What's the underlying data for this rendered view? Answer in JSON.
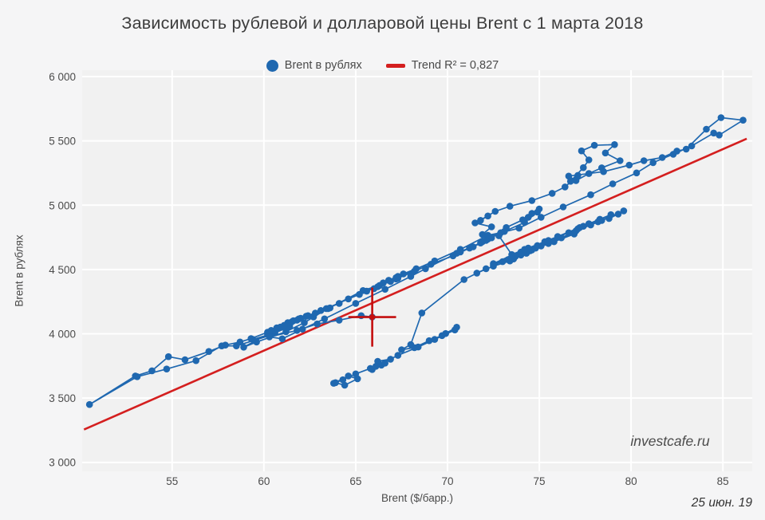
{
  "title": "Зависимость рублевой и долларовой цены Brent с 1 марта 2018",
  "watermark": "investcafe.ru",
  "date_label": "25 июн. 19",
  "legend": {
    "series_label": "Brent в рублях",
    "trend_label": "Trend R² = 0,827"
  },
  "colors": {
    "series": "#1f68b0",
    "trend": "#d41f1f",
    "marker_cross": "#c40f0f",
    "plot_bg": "#f1f1f1",
    "grid": "#ffffff",
    "tick_text": "#4c4c4c"
  },
  "chart_data": {
    "type": "scatter",
    "title": "Зависимость рублевой и долларовой цены Brent с 1 марта 2018",
    "xlabel": "Brent ($/барр.)",
    "ylabel": "Brent в рублях",
    "xlim": [
      50.1,
      86.6
    ],
    "ylim": [
      2930,
      6050
    ],
    "xticks": [
      55,
      60,
      65,
      70,
      75,
      80,
      85
    ],
    "yticks": [
      3000,
      3500,
      4000,
      4500,
      5000,
      5500,
      6000
    ],
    "ytick_labels": [
      "3 000",
      "3 500",
      "4 000",
      "4 500",
      "5 000",
      "5 500",
      "6 000"
    ],
    "grid": true,
    "legend_position": "top",
    "series": [
      {
        "name": "Brent в рублях",
        "mode": "lines+markers",
        "points": [
          [
            63.9,
            3620
          ],
          [
            64.4,
            3600
          ],
          [
            65.1,
            3650
          ],
          [
            64.6,
            3672
          ],
          [
            63.8,
            3615
          ],
          [
            64.3,
            3642
          ],
          [
            65.0,
            3688
          ],
          [
            65.8,
            3731
          ],
          [
            66.4,
            3756
          ],
          [
            65.9,
            3722
          ],
          [
            66.6,
            3772
          ],
          [
            66.2,
            3786
          ],
          [
            66.9,
            3802
          ],
          [
            66.1,
            3747
          ],
          [
            67.3,
            3832
          ],
          [
            68.4,
            3897
          ],
          [
            69.3,
            3956
          ],
          [
            70.4,
            4030
          ],
          [
            69.9,
            4002
          ],
          [
            70.5,
            4051
          ],
          [
            69.7,
            3986
          ],
          [
            69.0,
            3946
          ],
          [
            68.2,
            3892
          ],
          [
            67.5,
            3876
          ],
          [
            68.0,
            3916
          ],
          [
            68.6,
            4162
          ],
          [
            70.9,
            4422
          ],
          [
            72.1,
            4506
          ],
          [
            71.6,
            4472
          ],
          [
            72.5,
            4526
          ],
          [
            73.4,
            4566
          ],
          [
            74.0,
            4612
          ],
          [
            73.6,
            4582
          ],
          [
            74.5,
            4646
          ],
          [
            75.1,
            4682
          ],
          [
            74.3,
            4626
          ],
          [
            74.8,
            4666
          ],
          [
            75.5,
            4702
          ],
          [
            76.2,
            4746
          ],
          [
            77.0,
            4801
          ],
          [
            77.8,
            4846
          ],
          [
            78.4,
            4881
          ],
          [
            79.3,
            4931
          ],
          [
            78.8,
            4896
          ],
          [
            79.6,
            4956
          ],
          [
            78.2,
            4871
          ],
          [
            77.4,
            4836
          ],
          [
            76.6,
            4786
          ],
          [
            75.5,
            4726
          ],
          [
            76.9,
            4776
          ],
          [
            75.8,
            4716
          ],
          [
            74.6,
            4651
          ],
          [
            73.7,
            4601
          ],
          [
            74.9,
            4686
          ],
          [
            73.3,
            4576
          ],
          [
            72.5,
            4536
          ],
          [
            74.0,
            4636
          ],
          [
            75.3,
            4716
          ],
          [
            76.0,
            4756
          ],
          [
            77.2,
            4826
          ],
          [
            78.3,
            4891
          ],
          [
            77.7,
            4856
          ],
          [
            78.9,
            4926
          ],
          [
            77.1,
            4816
          ],
          [
            74.4,
            4666
          ],
          [
            73.0,
            4561
          ],
          [
            72.5,
            4546
          ],
          [
            74.2,
            4656
          ],
          [
            73.5,
            4616
          ],
          [
            72.8,
            4762
          ],
          [
            71.9,
            4772
          ],
          [
            72.4,
            4832
          ],
          [
            71.5,
            4862
          ],
          [
            72.2,
            4916
          ],
          [
            71.8,
            4882
          ],
          [
            72.6,
            4952
          ],
          [
            73.4,
            4992
          ],
          [
            74.6,
            5036
          ],
          [
            75.7,
            5092
          ],
          [
            76.4,
            5142
          ],
          [
            77.1,
            5232
          ],
          [
            76.7,
            5186
          ],
          [
            77.4,
            5292
          ],
          [
            77.7,
            5352
          ],
          [
            77.3,
            5422
          ],
          [
            78.0,
            5466
          ],
          [
            79.1,
            5471
          ],
          [
            78.6,
            5406
          ],
          [
            79.4,
            5346
          ],
          [
            78.4,
            5291
          ],
          [
            77.7,
            5246
          ],
          [
            77.0,
            5191
          ],
          [
            76.6,
            5226
          ],
          [
            78.5,
            5261
          ],
          [
            79.9,
            5312
          ],
          [
            80.7,
            5346
          ],
          [
            81.7,
            5371
          ],
          [
            82.5,
            5421
          ],
          [
            83.0,
            5436
          ],
          [
            84.1,
            5591
          ],
          [
            84.9,
            5681
          ],
          [
            86.1,
            5661
          ],
          [
            84.8,
            5546
          ],
          [
            84.5,
            5561
          ],
          [
            83.3,
            5461
          ],
          [
            82.3,
            5396
          ],
          [
            81.2,
            5331
          ],
          [
            80.3,
            5251
          ],
          [
            79.0,
            5166
          ],
          [
            77.8,
            5081
          ],
          [
            76.3,
            4986
          ],
          [
            75.1,
            4906
          ],
          [
            73.9,
            4821
          ],
          [
            72.9,
            4786
          ],
          [
            72.2,
            4766
          ],
          [
            70.7,
            4656
          ],
          [
            69.3,
            4566
          ],
          [
            67.2,
            4436
          ],
          [
            66.9,
            4406
          ],
          [
            65.4,
            4336
          ],
          [
            63.5,
            4196
          ],
          [
            62.7,
            4131
          ],
          [
            62.2,
            4086
          ],
          [
            61.2,
            4016
          ],
          [
            59.6,
            3936
          ],
          [
            58.9,
            3896
          ],
          [
            60.2,
            3996
          ],
          [
            61.4,
            4056
          ],
          [
            60.6,
            4006
          ],
          [
            59.4,
            3956
          ],
          [
            60.3,
            3986
          ],
          [
            58.5,
            3906
          ],
          [
            57.7,
            3906
          ],
          [
            56.3,
            3791
          ],
          [
            54.7,
            3726
          ],
          [
            53.1,
            3666
          ],
          [
            50.5,
            3450
          ],
          [
            53.0,
            3672
          ],
          [
            53.9,
            3712
          ],
          [
            54.8,
            3822
          ],
          [
            55.7,
            3798
          ],
          [
            57.0,
            3862
          ],
          [
            57.9,
            3912
          ],
          [
            58.7,
            3936
          ],
          [
            59.3,
            3962
          ],
          [
            60.2,
            4012
          ],
          [
            60.9,
            4052
          ],
          [
            60.4,
            4026
          ],
          [
            61.3,
            4086
          ],
          [
            61.9,
            4116
          ],
          [
            61.1,
            4066
          ],
          [
            60.7,
            4046
          ],
          [
            61.6,
            4101
          ],
          [
            62.3,
            4136
          ],
          [
            61.5,
            4091
          ],
          [
            62.0,
            4121
          ],
          [
            62.8,
            4161
          ],
          [
            63.6,
            4201
          ],
          [
            62.4,
            4141
          ],
          [
            61.8,
            4106
          ],
          [
            63.1,
            4181
          ],
          [
            64.1,
            4236
          ],
          [
            63.4,
            4196
          ],
          [
            64.6,
            4271
          ],
          [
            65.2,
            4306
          ],
          [
            66.2,
            4366
          ],
          [
            65.6,
            4331
          ],
          [
            66.5,
            4396
          ],
          [
            66.0,
            4351
          ],
          [
            67.3,
            4446
          ],
          [
            66.8,
            4416
          ],
          [
            67.6,
            4466
          ],
          [
            68.3,
            4506
          ],
          [
            67.3,
            4431
          ],
          [
            66.3,
            4376
          ],
          [
            67.2,
            4426
          ],
          [
            68.2,
            4486
          ],
          [
            69.1,
            4541
          ],
          [
            70.3,
            4606
          ],
          [
            71.2,
            4666
          ],
          [
            70.7,
            4636
          ],
          [
            71.8,
            4706
          ],
          [
            72.4,
            4746
          ],
          [
            71.9,
            4716
          ],
          [
            73.1,
            4796
          ],
          [
            74.2,
            4866
          ],
          [
            74.9,
            4946
          ],
          [
            74.4,
            4906
          ],
          [
            75.0,
            4971
          ],
          [
            74.6,
            4936
          ],
          [
            74.1,
            4886
          ],
          [
            73.2,
            4826
          ],
          [
            72.2,
            4736
          ],
          [
            71.4,
            4676
          ],
          [
            72.1,
            4726
          ],
          [
            70.5,
            4626
          ],
          [
            68.8,
            4506
          ],
          [
            68.0,
            4446
          ],
          [
            66.6,
            4346
          ],
          [
            65.0,
            4236
          ],
          [
            63.3,
            4116
          ],
          [
            62.1,
            4036
          ],
          [
            61.0,
            3961
          ],
          [
            60.3,
            3976
          ],
          [
            61.8,
            4026
          ],
          [
            62.9,
            4076
          ],
          [
            64.1,
            4106
          ],
          [
            65.3,
            4141
          ],
          [
            65.9,
            4130
          ]
        ]
      }
    ],
    "trend": {
      "name": "Trend",
      "r2": "0,827",
      "x": [
        50.2,
        86.3
      ],
      "y": [
        3255,
        5517
      ]
    },
    "current_point": {
      "x": 65.9,
      "y": 4130,
      "x_err": 1.3,
      "y_err": 230,
      "note": "red crosshair marker"
    }
  }
}
